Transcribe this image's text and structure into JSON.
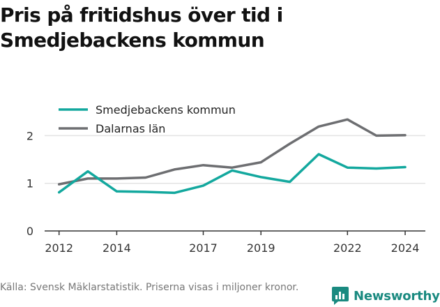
{
  "title_lines": [
    "Pris på fritidshus över tid i",
    "Smedjebackens kommun"
  ],
  "source": "Källa: Svensk Mäklarstatistik. Priserna visas i miljoner kronor.",
  "brand": "Newsworthy",
  "colors": {
    "series_1": "#13a89e",
    "series_2": "#6d6e71",
    "grid": "#e3e3e3",
    "axis": "#333333",
    "brand": "#1a8a80"
  },
  "chart_data": {
    "type": "line",
    "title": "Pris på fritidshus över tid i Smedjebackens kommun",
    "xlabel": "",
    "ylabel": "",
    "xlim": [
      2011.5,
      2024.7
    ],
    "ylim": [
      0,
      2.65
    ],
    "x_ticks": [
      2012,
      2014,
      2017,
      2019,
      2022,
      2024
    ],
    "y_ticks": [
      0,
      1,
      2
    ],
    "grid": true,
    "legend_position": "top-left",
    "series": [
      {
        "name": "Smedjebackens kommun",
        "color": "#13a89e",
        "x": [
          2012,
          2013,
          2014,
          2015,
          2016,
          2017,
          2018,
          2019,
          2020,
          2021,
          2022,
          2023,
          2024
        ],
        "values": [
          0.81,
          1.25,
          0.83,
          0.82,
          0.8,
          0.95,
          1.27,
          1.13,
          1.03,
          1.61,
          1.33,
          1.31,
          1.34
        ]
      },
      {
        "name": "Dalarnas län",
        "color": "#6d6e71",
        "x": [
          2012,
          2013,
          2014,
          2015,
          2016,
          2017,
          2018,
          2019,
          2020,
          2021,
          2022,
          2023,
          2024
        ],
        "values": [
          0.98,
          1.1,
          1.1,
          1.12,
          1.29,
          1.38,
          1.33,
          1.44,
          1.83,
          2.19,
          2.34,
          2.0,
          2.01
        ]
      }
    ]
  }
}
